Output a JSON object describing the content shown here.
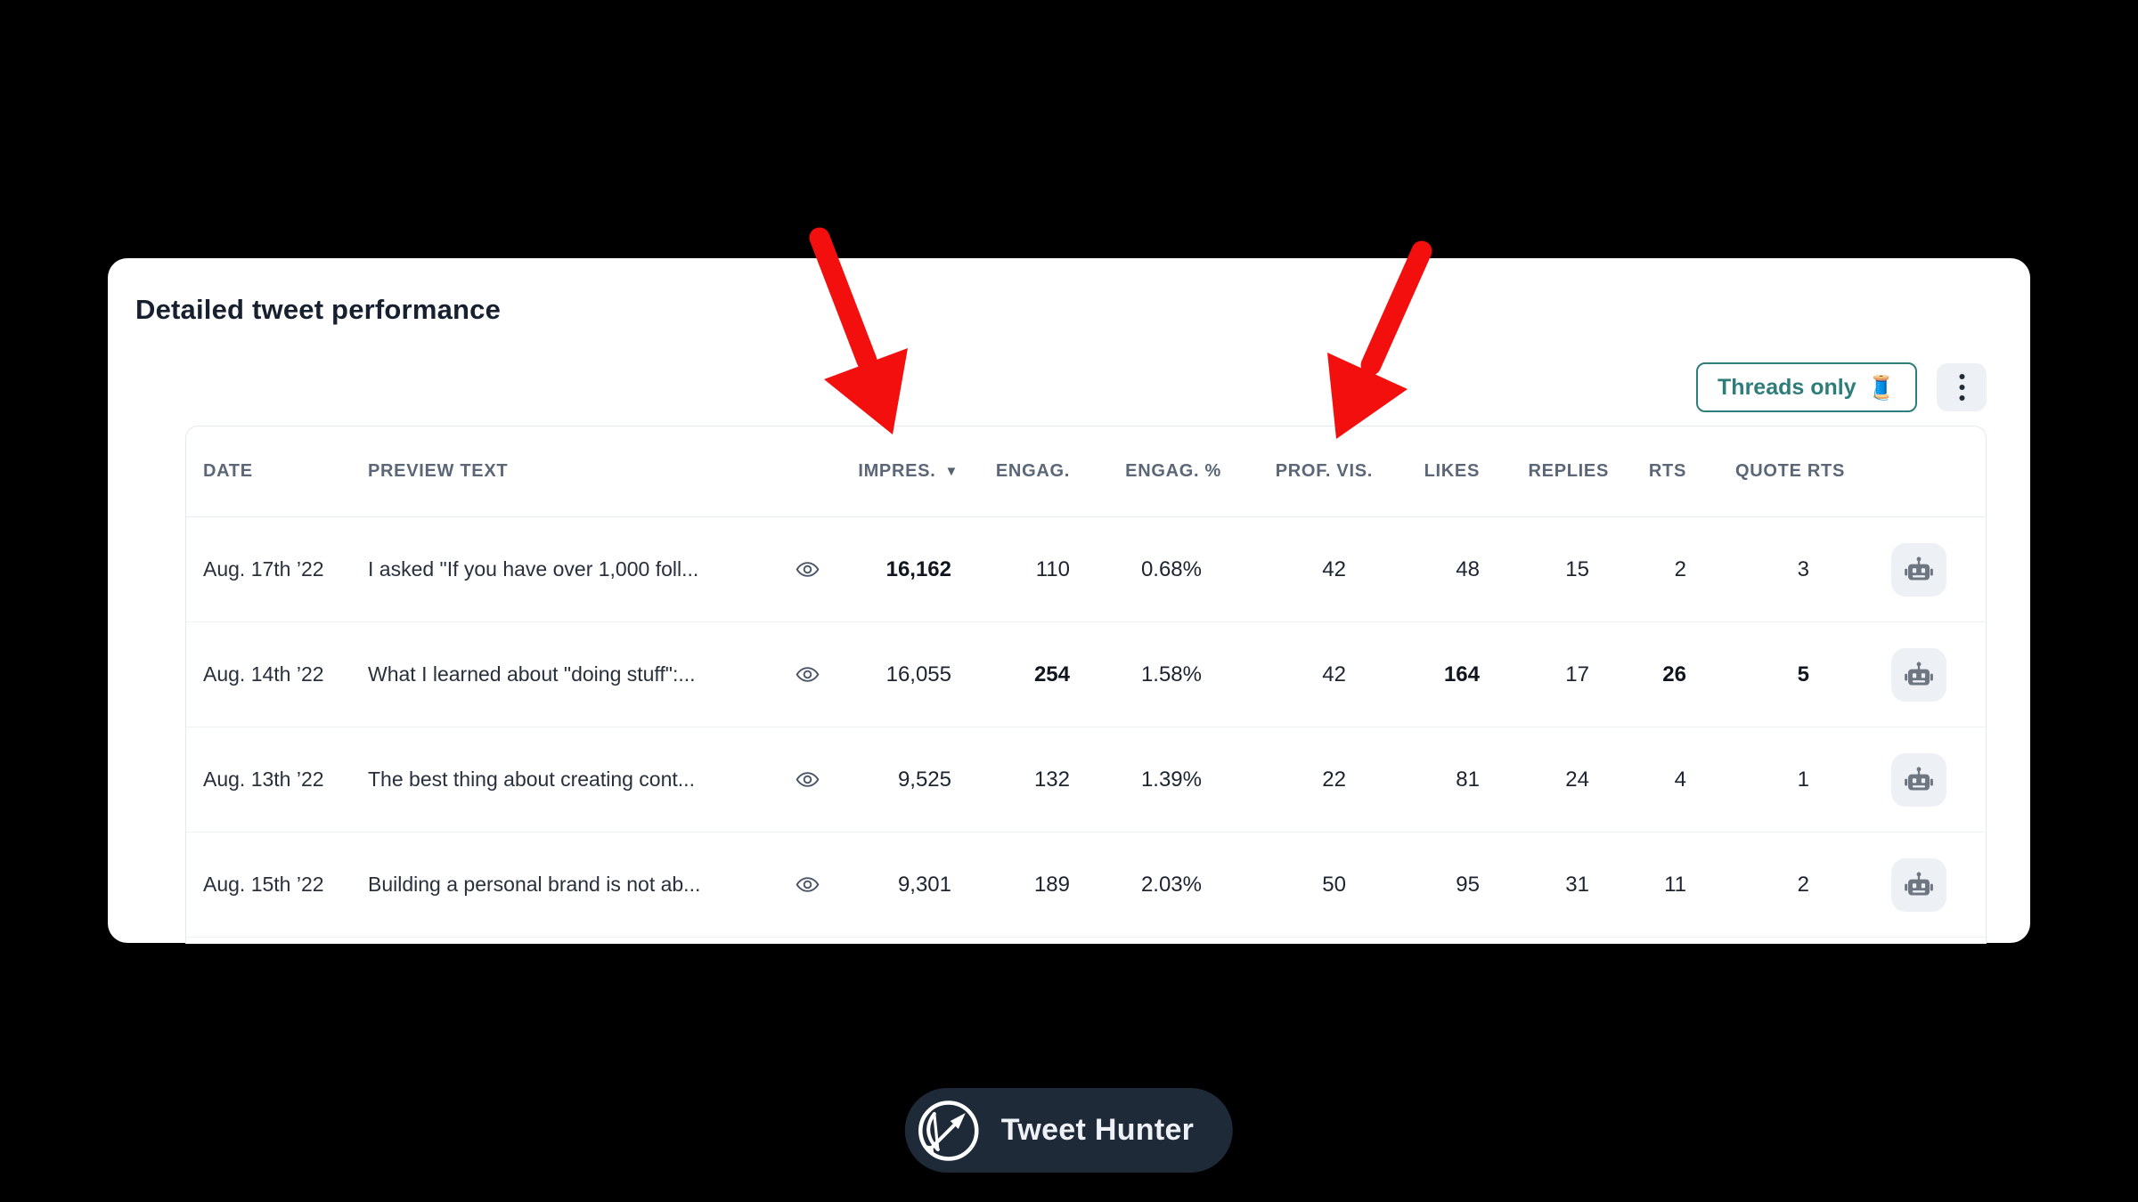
{
  "card": {
    "title": "Detailed tweet performance"
  },
  "toolbar": {
    "threads_button": {
      "label": "Threads only",
      "emoji": "🧵"
    },
    "menu_icon": "⋮"
  },
  "table": {
    "columns": [
      {
        "key": "date",
        "label": "DATE"
      },
      {
        "key": "preview",
        "label": "PREVIEW TEXT"
      },
      {
        "key": "view",
        "label": ""
      },
      {
        "key": "impressions",
        "label": "IMPRES.",
        "sortable": true,
        "sort_icon": "▼"
      },
      {
        "key": "engagements",
        "label": "ENGAG."
      },
      {
        "key": "engagement_pct",
        "label": "ENGAG. %"
      },
      {
        "key": "profile_visits",
        "label": "PROF. VIS."
      },
      {
        "key": "likes",
        "label": "LIKES"
      },
      {
        "key": "replies",
        "label": "REPLIES"
      },
      {
        "key": "rts",
        "label": "RTS"
      },
      {
        "key": "quote_rts",
        "label": "QUOTE RTS"
      },
      {
        "key": "actions",
        "label": ""
      }
    ],
    "rows": [
      {
        "date": "Aug. 17th ’22",
        "preview": "I asked \"If you have over 1,000 foll...",
        "impressions": "16,162",
        "engagements": "110",
        "engagement_pct": "0.68%",
        "profile_visits": "42",
        "likes": "48",
        "replies": "15",
        "rts": "2",
        "quote_rts": "3",
        "bold": [
          "impressions"
        ]
      },
      {
        "date": "Aug. 14th ’22",
        "preview": "What I learned about \"doing stuff\":...",
        "impressions": "16,055",
        "engagements": "254",
        "engagement_pct": "1.58%",
        "profile_visits": "42",
        "likes": "164",
        "replies": "17",
        "rts": "26",
        "quote_rts": "5",
        "bold": [
          "engagements",
          "likes",
          "rts",
          "quote_rts"
        ]
      },
      {
        "date": "Aug. 13th ’22",
        "preview": "The best thing about creating cont...",
        "impressions": "9,525",
        "engagements": "132",
        "engagement_pct": "1.39%",
        "profile_visits": "22",
        "likes": "81",
        "replies": "24",
        "rts": "4",
        "quote_rts": "1",
        "bold": []
      },
      {
        "date": "Aug. 15th ’22",
        "preview": "Building a personal brand is not ab...",
        "impressions": "9,301",
        "engagements": "189",
        "engagement_pct": "2.03%",
        "profile_visits": "50",
        "likes": "95",
        "replies": "31",
        "rts": "11",
        "quote_rts": "2",
        "bold": []
      }
    ]
  },
  "badge": {
    "label": "Tweet Hunter"
  },
  "annotations": {
    "arrow_color": "#f40f0f",
    "arrow_targets": [
      "IMPRES.",
      "PROF. VIS."
    ]
  },
  "colors": {
    "page_bg": "#000000",
    "card_bg": "#ffffff",
    "accent_teal": "#2e7d7b",
    "badge_bg": "#1f2a39",
    "header_text": "#5b6776"
  }
}
